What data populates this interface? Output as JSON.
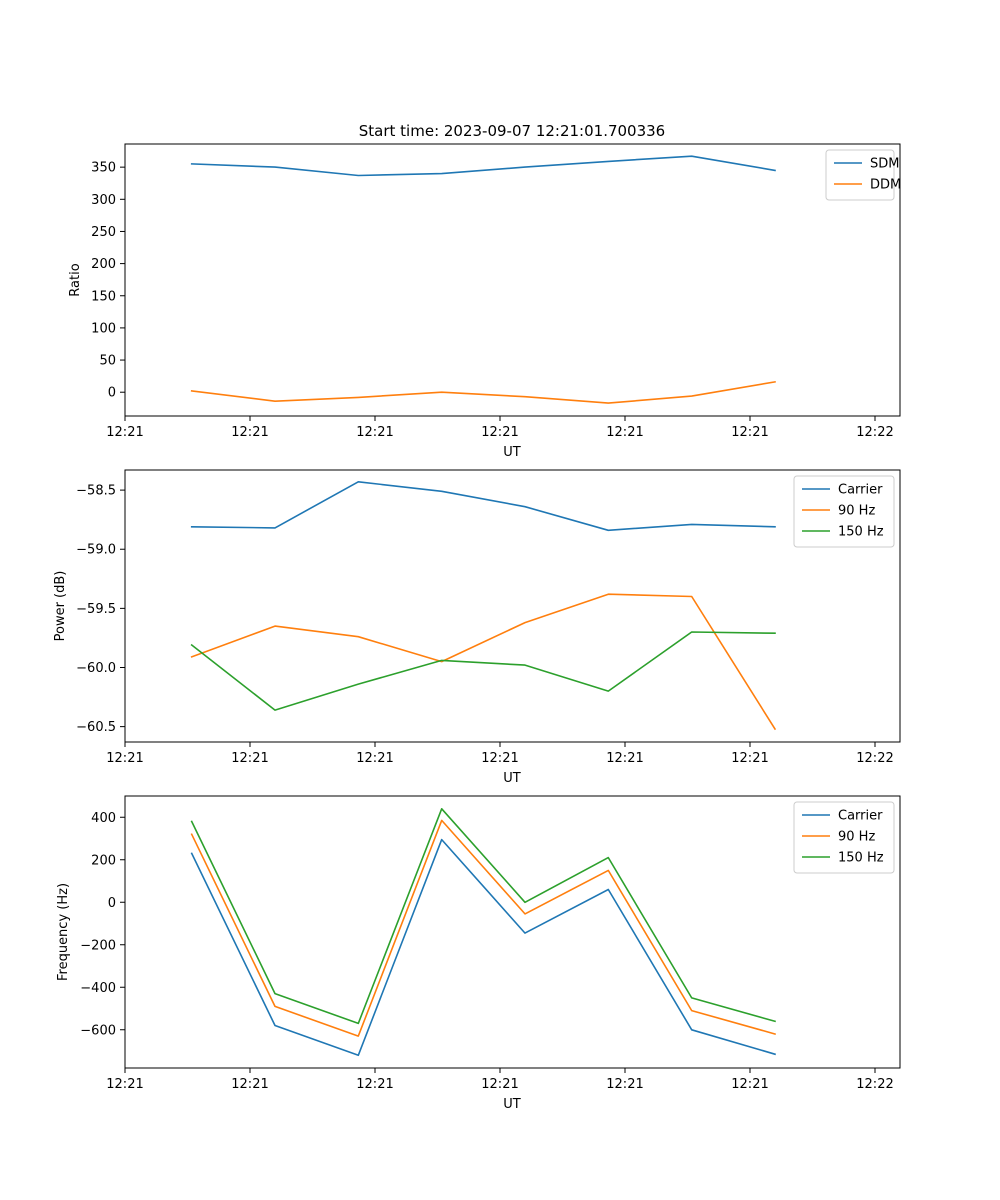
{
  "figure_title": "Start time: 2023-09-07 12:21:01.700336",
  "colors": {
    "blue": "#1f77b4",
    "orange": "#ff7f0e",
    "green": "#2ca02c"
  },
  "chart_data": [
    {
      "type": "line",
      "title": "Start time: 2023-09-07 12:21:01.700336",
      "xlabel": "UT",
      "ylabel": "Ratio",
      "x": [
        1,
        2,
        3,
        4,
        5,
        6,
        7,
        8
      ],
      "xlim": [
        0.2,
        9.5
      ],
      "xticks": [
        0.2,
        1.7,
        3.2,
        4.7,
        6.2,
        7.7,
        9.2
      ],
      "xtick_labels": [
        "12:21",
        "12:21",
        "12:21",
        "12:21",
        "12:21",
        "12:21",
        "12:22"
      ],
      "ylim": [
        -37,
        386
      ],
      "yticks": [
        0,
        50,
        100,
        150,
        200,
        250,
        300,
        350
      ],
      "ytick_labels": [
        "0",
        "50",
        "100",
        "150",
        "200",
        "250",
        "300",
        "350"
      ],
      "legend_position": "top-right",
      "series": [
        {
          "name": "SDM",
          "color": "#1f77b4",
          "values": [
            355,
            350,
            337,
            340,
            350,
            359,
            367,
            345
          ]
        },
        {
          "name": "DDM",
          "color": "#ff7f0e",
          "values": [
            2,
            -14,
            -8,
            0,
            -7,
            -17,
            -6,
            16
          ]
        }
      ]
    },
    {
      "type": "line",
      "title": "",
      "xlabel": "UT",
      "ylabel": "Power (dB)",
      "x": [
        1,
        2,
        3,
        4,
        5,
        6,
        7,
        8
      ],
      "xlim": [
        0.2,
        9.5
      ],
      "xticks": [
        0.2,
        1.7,
        3.2,
        4.7,
        6.2,
        7.7,
        9.2
      ],
      "xtick_labels": [
        "12:21",
        "12:21",
        "12:21",
        "12:21",
        "12:21",
        "12:21",
        "12:22"
      ],
      "ylim": [
        -60.63,
        -58.33
      ],
      "yticks": [
        -60.5,
        -60.0,
        -59.5,
        -59.0,
        -58.5
      ],
      "ytick_labels": [
        "−60.5",
        "−60.0",
        "−59.5",
        "−59.0",
        "−58.5"
      ],
      "legend_position": "top-right",
      "series": [
        {
          "name": "Carrier",
          "color": "#1f77b4",
          "values": [
            -58.81,
            -58.82,
            -58.43,
            -58.51,
            -58.64,
            -58.84,
            -58.79,
            -58.81
          ]
        },
        {
          "name": "90 Hz",
          "color": "#ff7f0e",
          "values": [
            -59.91,
            -59.65,
            -59.74,
            -59.95,
            -59.62,
            -59.38,
            -59.4,
            -60.52
          ]
        },
        {
          "name": "150 Hz",
          "color": "#2ca02c",
          "values": [
            -59.81,
            -60.36,
            -60.14,
            -59.94,
            -59.98,
            -60.2,
            -59.7,
            -59.71
          ]
        }
      ]
    },
    {
      "type": "line",
      "title": "",
      "xlabel": "UT",
      "ylabel": "Frequency (Hz)",
      "x": [
        1,
        2,
        3,
        4,
        5,
        6,
        7,
        8
      ],
      "xlim": [
        0.2,
        9.5
      ],
      "xticks": [
        0.2,
        1.7,
        3.2,
        4.7,
        6.2,
        7.7,
        9.2
      ],
      "xtick_labels": [
        "12:21",
        "12:21",
        "12:21",
        "12:21",
        "12:21",
        "12:21",
        "12:22"
      ],
      "ylim": [
        -780,
        500
      ],
      "yticks": [
        -600,
        -400,
        -200,
        0,
        200,
        400
      ],
      "ytick_labels": [
        "−600",
        "−400",
        "−200",
        "0",
        "200",
        "400"
      ],
      "legend_position": "top-right",
      "series": [
        {
          "name": "Carrier",
          "color": "#1f77b4",
          "values": [
            230,
            -580,
            -720,
            295,
            -145,
            60,
            -600,
            -715
          ]
        },
        {
          "name": "90 Hz",
          "color": "#ff7f0e",
          "values": [
            320,
            -490,
            -630,
            385,
            -55,
            150,
            -510,
            -620
          ]
        },
        {
          "name": "150 Hz",
          "color": "#2ca02c",
          "values": [
            380,
            -430,
            -570,
            440,
            0,
            210,
            -450,
            -560
          ]
        }
      ]
    }
  ]
}
